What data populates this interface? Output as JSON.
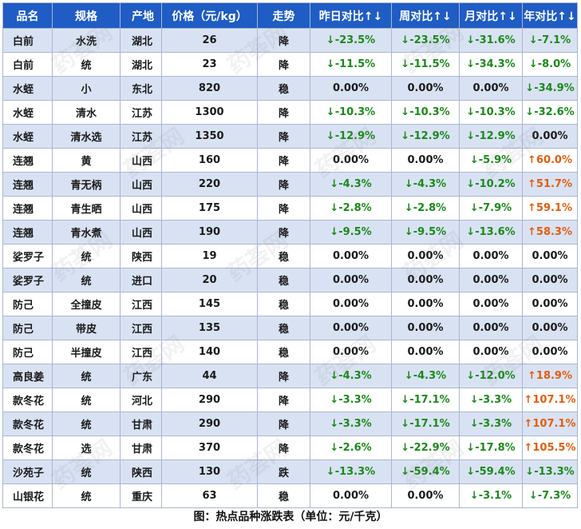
{
  "table": {
    "headers": [
      "品名",
      "规格",
      "产地",
      "价格（元/kg）",
      "走势",
      "昨日对比↑↓",
      "周对比↑↓",
      "月对比↑↓",
      "年对比↑↓"
    ],
    "rows": [
      [
        "白前",
        "水洗",
        "湖北",
        "26",
        "降",
        "↓-23.5%",
        "↓-23.5%",
        "↓-31.6%",
        "↓-7.1%"
      ],
      [
        "白前",
        "统",
        "湖北",
        "23",
        "降",
        "↓-11.5%",
        "↓-11.5%",
        "↓-34.3%",
        "↓-8.0%"
      ],
      [
        "水蛭",
        "小",
        "东北",
        "820",
        "稳",
        "0.00%",
        "0.00%",
        "0.00%",
        "↓-34.9%"
      ],
      [
        "水蛭",
        "清水",
        "江苏",
        "1300",
        "降",
        "↓-10.3%",
        "↓-10.3%",
        "↓-10.3%",
        "↓-32.6%"
      ],
      [
        "水蛭",
        "清水选",
        "江苏",
        "1350",
        "降",
        "↓-12.9%",
        "↓-12.9%",
        "↓-12.9%",
        "0.00%"
      ],
      [
        "连翘",
        "黄",
        "山西",
        "160",
        "降",
        "0.00%",
        "0.00%",
        "↓-5.9%",
        "↑60.0%"
      ],
      [
        "连翘",
        "青无柄",
        "山西",
        "220",
        "降",
        "↓-4.3%",
        "↓-4.3%",
        "↓-10.2%",
        "↑51.7%"
      ],
      [
        "连翘",
        "青生晒",
        "山西",
        "175",
        "降",
        "↓-2.8%",
        "↓-2.8%",
        "↓-7.9%",
        "↑59.1%"
      ],
      [
        "连翘",
        "青水煮",
        "山西",
        "190",
        "降",
        "↓-9.5%",
        "↓-9.5%",
        "↓-13.6%",
        "↑58.3%"
      ],
      [
        "娑罗子",
        "统",
        "陕西",
        "19",
        "稳",
        "0.00%",
        "0.00%",
        "0.00%",
        "0.00%"
      ],
      [
        "娑罗子",
        "统",
        "进口",
        "20",
        "稳",
        "0.00%",
        "0.00%",
        "0.00%",
        "0.00%"
      ],
      [
        "防己",
        "全撞皮",
        "江西",
        "145",
        "稳",
        "0.00%",
        "0.00%",
        "0.00%",
        "0.00%"
      ],
      [
        "防己",
        "带皮",
        "江西",
        "135",
        "稳",
        "0.00%",
        "0.00%",
        "0.00%",
        "0.00%"
      ],
      [
        "防己",
        "半撞皮",
        "江西",
        "140",
        "稳",
        "0.00%",
        "0.00%",
        "0.00%",
        "0.00%"
      ],
      [
        "高良姜",
        "统",
        "广东",
        "44",
        "降",
        "↓-4.3%",
        "↓-4.3%",
        "↓-12.0%",
        "↑18.9%"
      ],
      [
        "款冬花",
        "统",
        "河北",
        "290",
        "降",
        "↓-3.3%",
        "↓-17.1%",
        "↓-3.3%",
        "↑107.1%"
      ],
      [
        "款冬花",
        "统",
        "甘肃",
        "290",
        "降",
        "↓-3.3%",
        "↓-17.1%",
        "↓-3.3%",
        "↑107.1%"
      ],
      [
        "款冬花",
        "选",
        "甘肃",
        "370",
        "降",
        "↓-2.6%",
        "↓-22.9%",
        "↓-17.8%",
        "↑105.5%"
      ],
      [
        "沙苑子",
        "统",
        "陕西",
        "130",
        "跌",
        "↓-13.3%",
        "↓-59.4%",
        "↓-59.4%",
        "↓-13.3%"
      ],
      [
        "山银花",
        "统",
        "重庆",
        "63",
        "稳",
        "0.00%",
        "0.00%",
        "↓-3.1%",
        "↓-7.3%"
      ]
    ]
  },
  "caption": "图：热点品种涨跌表（单位：元/千克）",
  "watermark": "药荟网",
  "colors": {
    "header_bg": "#1f5cc4",
    "row_alt_bg": "#d9e2f3",
    "down": "#1a8a1a",
    "up": "#e65c0c"
  }
}
